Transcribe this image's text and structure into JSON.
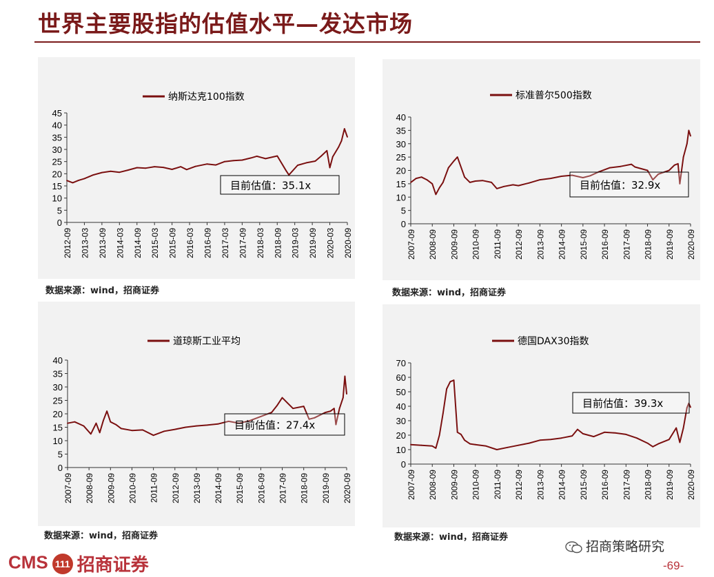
{
  "page": {
    "title": "世界主要股指的估值水平—发达市场",
    "page_number": "-69-",
    "wechat_label": "招商策略研究",
    "brand_latin": "CMS",
    "brand_badge": "111",
    "brand_cn": "招商证券"
  },
  "colors": {
    "line": "#7a0f0f",
    "title": "#7a1a1a",
    "panel_bg": "#f2f2f2",
    "brand": "#b8323a"
  },
  "sources": [
    "数据来源：wind，招商证券",
    "数据来源：wind，招商证券",
    "数据来源：wind，招商证券",
    "数据来源：wind，招商证券"
  ],
  "chart_data": [
    {
      "type": "line",
      "legend": "纳斯达克100指数",
      "annotation": "目前估值：35.1x",
      "ylim": [
        0,
        45
      ],
      "yticks": [
        0,
        5,
        10,
        15,
        20,
        25,
        30,
        35,
        40,
        45
      ],
      "xlim": [
        "2012-09",
        "2020-09"
      ],
      "xticks": [
        "2012-09",
        "2013-03",
        "2013-09",
        "2014-03",
        "2014-09",
        "2015-03",
        "2015-09",
        "2016-03",
        "2016-09",
        "2017-03",
        "2017-09",
        "2018-03",
        "2018-09",
        "2019-03",
        "2019-09",
        "2020-03",
        "2020-09"
      ],
      "series": [
        {
          "x": [
            "2012-09",
            "2012-11",
            "2013-01",
            "2013-03",
            "2013-06",
            "2013-09",
            "2013-12",
            "2014-03",
            "2014-06",
            "2014-09",
            "2014-12",
            "2015-03",
            "2015-06",
            "2015-09",
            "2015-12",
            "2016-02",
            "2016-05",
            "2016-09",
            "2016-12",
            "2017-03",
            "2017-06",
            "2017-09",
            "2017-12",
            "2018-02",
            "2018-05",
            "2018-09",
            "2018-12",
            "2019-01",
            "2019-04",
            "2019-07",
            "2019-10",
            "2019-12",
            "2020-02",
            "2020-03",
            "2020-04",
            "2020-06",
            "2020-07",
            "2020-08",
            "2020-09"
          ],
          "values": [
            17.2,
            16.3,
            17.3,
            18.0,
            19.5,
            20.5,
            21.0,
            20.6,
            21.5,
            22.5,
            22.3,
            22.9,
            22.6,
            21.8,
            22.9,
            21.7,
            23.0,
            24.0,
            23.6,
            25.0,
            25.4,
            25.6,
            26.5,
            27.2,
            26.2,
            27.3,
            21.3,
            19.5,
            23.5,
            24.5,
            25.2,
            27.2,
            29.5,
            22.5,
            27.0,
            31.0,
            33.5,
            38.5,
            35.1
          ]
        }
      ]
    },
    {
      "type": "line",
      "legend": "标准普尔500指数",
      "annotation": "目前估值：32.9x",
      "ylim": [
        0,
        40
      ],
      "yticks": [
        0,
        5,
        10,
        15,
        20,
        25,
        30,
        35,
        40
      ],
      "xlim": [
        "2007-09",
        "2020-09"
      ],
      "xticks": [
        "2007-09",
        "2008-09",
        "2009-09",
        "2010-09",
        "2011-09",
        "2012-09",
        "2013-09",
        "2014-09",
        "2015-09",
        "2016-09",
        "2017-09",
        "2018-09",
        "2019-09",
        "2020-09"
      ],
      "series": [
        {
          "x": [
            "2007-09",
            "2007-12",
            "2008-03",
            "2008-06",
            "2008-09",
            "2008-11",
            "2009-01",
            "2009-03",
            "2009-06",
            "2009-09",
            "2009-11",
            "2010-03",
            "2010-06",
            "2010-09",
            "2011-01",
            "2011-06",
            "2011-09",
            "2012-01",
            "2012-06",
            "2012-09",
            "2013-03",
            "2013-09",
            "2014-03",
            "2014-09",
            "2015-03",
            "2015-09",
            "2016-01",
            "2016-06",
            "2016-12",
            "2017-06",
            "2017-12",
            "2018-02",
            "2018-09",
            "2018-12",
            "2019-03",
            "2019-09",
            "2019-12",
            "2020-02",
            "2020-03",
            "2020-05",
            "2020-07",
            "2020-08",
            "2020-09"
          ],
          "values": [
            15.5,
            17.0,
            17.5,
            16.5,
            15.0,
            11.0,
            13.5,
            15.5,
            21.0,
            23.5,
            25.0,
            17.5,
            15.5,
            16.0,
            16.2,
            15.5,
            13.2,
            14.0,
            14.6,
            14.3,
            15.3,
            16.5,
            17.0,
            17.8,
            18.2,
            17.3,
            18.0,
            19.5,
            21.0,
            21.5,
            22.3,
            21.3,
            20.0,
            16.5,
            18.6,
            20.0,
            22.0,
            22.5,
            15.0,
            25.0,
            30.0,
            35.0,
            32.9
          ]
        }
      ]
    },
    {
      "type": "line",
      "legend": "道琼斯工业平均",
      "annotation": "目前估值：27.4x",
      "ylim": [
        0,
        40
      ],
      "yticks": [
        0,
        5,
        10,
        15,
        20,
        25,
        30,
        35,
        40
      ],
      "xlim": [
        "2007-09",
        "2020-09"
      ],
      "xticks": [
        "2007-09",
        "2008-09",
        "2009-09",
        "2010-09",
        "2011-09",
        "2012-09",
        "2013-09",
        "2014-09",
        "2015-09",
        "2016-09",
        "2017-09",
        "2018-09",
        "2019-09",
        "2020-09"
      ],
      "series": [
        {
          "x": [
            "2007-09",
            "2008-01",
            "2008-06",
            "2008-10",
            "2009-01",
            "2009-03",
            "2009-05",
            "2009-07",
            "2009-09",
            "2009-12",
            "2010-03",
            "2010-09",
            "2011-03",
            "2011-09",
            "2012-03",
            "2012-09",
            "2013-03",
            "2013-09",
            "2014-03",
            "2014-09",
            "2015-03",
            "2015-09",
            "2016-03",
            "2016-09",
            "2017-03",
            "2017-06",
            "2017-09",
            "2017-12",
            "2018-03",
            "2018-09",
            "2018-12",
            "2019-03",
            "2019-09",
            "2019-12",
            "2020-02",
            "2020-03",
            "2020-05",
            "2020-07",
            "2020-08",
            "2020-09"
          ],
          "values": [
            16.5,
            17.0,
            15.5,
            12.5,
            16.5,
            13.0,
            17.5,
            21.0,
            17.0,
            16.0,
            14.5,
            13.8,
            14.0,
            12.0,
            13.5,
            14.2,
            15.0,
            15.5,
            15.8,
            16.2,
            17.2,
            16.5,
            17.5,
            19.0,
            20.5,
            23.0,
            26.0,
            24.0,
            22.0,
            22.8,
            18.0,
            18.5,
            20.5,
            21.0,
            22.0,
            16.0,
            22.0,
            26.0,
            34.0,
            27.4
          ]
        }
      ]
    },
    {
      "type": "line",
      "legend": "德国DAX30指数",
      "annotation": "目前估值：39.3x",
      "ylim": [
        0,
        70
      ],
      "yticks": [
        0,
        10,
        20,
        30,
        40,
        50,
        60,
        70
      ],
      "xlim": [
        "2007-09",
        "2020-09"
      ],
      "xticks": [
        "2007-09",
        "2008-09",
        "2009-09",
        "2010-09",
        "2011-09",
        "2012-09",
        "2013-09",
        "2014-09",
        "2015-09",
        "2016-09",
        "2017-09",
        "2018-09",
        "2019-09",
        "2020-09"
      ],
      "series": [
        {
          "x": [
            "2007-09",
            "2008-03",
            "2008-09",
            "2008-11",
            "2009-01",
            "2009-03",
            "2009-05",
            "2009-07",
            "2009-09",
            "2009-11",
            "2010-01",
            "2010-03",
            "2010-06",
            "2010-09",
            "2011-03",
            "2011-09",
            "2012-03",
            "2012-09",
            "2013-03",
            "2013-09",
            "2014-03",
            "2014-09",
            "2015-03",
            "2015-06",
            "2015-09",
            "2016-03",
            "2016-09",
            "2017-03",
            "2017-09",
            "2018-03",
            "2018-09",
            "2018-12",
            "2019-03",
            "2019-09",
            "2020-01",
            "2020-03",
            "2020-05",
            "2020-07",
            "2020-08",
            "2020-09"
          ],
          "values": [
            13.5,
            13.0,
            12.5,
            11.0,
            20.0,
            35.0,
            52.0,
            57.0,
            58.0,
            22.0,
            20.5,
            16.5,
            14.0,
            13.5,
            12.5,
            10.0,
            11.5,
            13.0,
            14.5,
            16.5,
            17.0,
            18.0,
            19.5,
            24.0,
            21.0,
            19.0,
            22.0,
            21.5,
            20.5,
            18.0,
            14.5,
            12.0,
            14.0,
            17.0,
            25.0,
            15.0,
            25.0,
            39.0,
            42.0,
            39.3
          ]
        }
      ]
    }
  ]
}
